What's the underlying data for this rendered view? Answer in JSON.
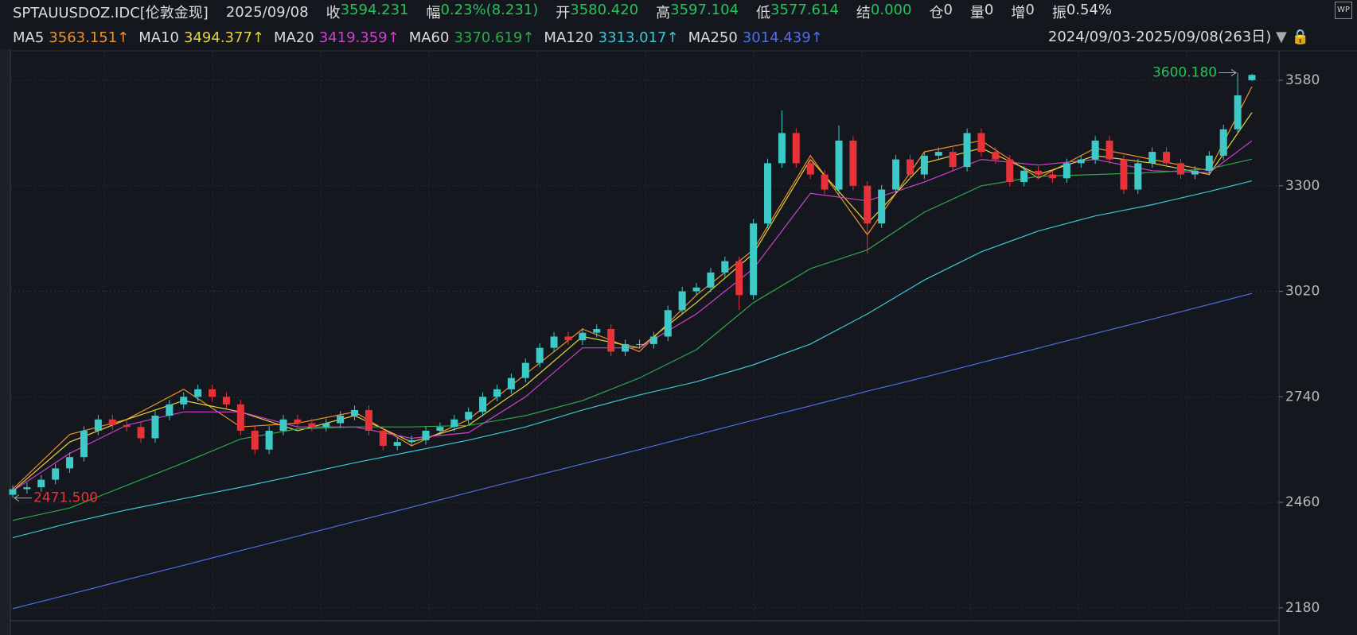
{
  "header": {
    "symbol": "SPTAUUSDOZ.IDC[伦敦金现]",
    "date": "2025/09/08",
    "fields": [
      {
        "label": "收",
        "value": "3594.231",
        "color": "#27c25c"
      },
      {
        "label": "幅",
        "value": "0.23%(8.231)",
        "color": "#27c25c"
      },
      {
        "label": "开",
        "value": "3580.420",
        "color": "#27c25c"
      },
      {
        "label": "高",
        "value": "3597.104",
        "color": "#27c25c"
      },
      {
        "label": "低",
        "value": "3577.614",
        "color": "#27c25c"
      },
      {
        "label": "结",
        "value": "0.000",
        "color": "#27c25c"
      },
      {
        "label": "仓",
        "value": "0",
        "color": "#dcdcdc"
      },
      {
        "label": "量",
        "value": "0",
        "color": "#dcdcdc"
      },
      {
        "label": "增",
        "value": "0",
        "color": "#dcdcdc"
      },
      {
        "label": "振",
        "value": "0.54%",
        "color": "#dcdcdc"
      }
    ]
  },
  "range_label": "2024/09/03-2025/09/08(263日)",
  "icon_text": "WP",
  "chart_data": {
    "type": "candlestick",
    "up_color": "#3ec9c9",
    "down_color": "#e8323a",
    "ylim": [
      2148,
      3656
    ],
    "yticks": [
      2180,
      2460,
      2740,
      3020,
      3300,
      3580
    ],
    "grid": true,
    "open": [
      2480,
      2495,
      2500,
      2520,
      2550,
      2580,
      2650,
      2680,
      2665,
      2660,
      2630,
      2690,
      2720,
      2740,
      2760,
      2740,
      2720,
      2650,
      2600,
      2650,
      2680,
      2670,
      2660,
      2670,
      2690,
      2705,
      2650,
      2610,
      2620,
      2625,
      2650,
      2660,
      2680,
      2700,
      2740,
      2760,
      2790,
      2830,
      2870,
      2900,
      2890,
      2910,
      2920,
      2860,
      2880,
      2880,
      2900,
      2970,
      3020,
      3030,
      3070,
      3100,
      3010,
      3200,
      3360,
      3440,
      3360,
      3330,
      3290,
      3420,
      3300,
      3200,
      3290,
      3370,
      3330,
      3380,
      3390,
      3350,
      3440,
      3390,
      3370,
      3310,
      3340,
      3330,
      3320,
      3360,
      3370,
      3420,
      3370,
      3290,
      3360,
      3390,
      3360,
      3330,
      3340,
      3380,
      3450,
      3580.42
    ],
    "high": [
      2505,
      2512,
      2532,
      2562,
      2592,
      2662,
      2692,
      2692,
      2677,
      2672,
      2702,
      2732,
      2752,
      2772,
      2772,
      2752,
      2732,
      2662,
      2662,
      2692,
      2692,
      2682,
      2682,
      2702,
      2717,
      2717,
      2662,
      2632,
      2637,
      2662,
      2672,
      2692,
      2712,
      2752,
      2772,
      2802,
      2842,
      2882,
      2912,
      2912,
      2922,
      2932,
      2932,
      2892,
      2892,
      2912,
      2982,
      3032,
      3042,
      3082,
      3112,
      3112,
      3212,
      3372,
      3500,
      3452,
      3372,
      3342,
      3460,
      3432,
      3312,
      3302,
      3382,
      3382,
      3392,
      3402,
      3402,
      3452,
      3452,
      3402,
      3382,
      3352,
      3352,
      3342,
      3372,
      3382,
      3432,
      3432,
      3382,
      3372,
      3402,
      3402,
      3372,
      3352,
      3392,
      3462,
      3600.18,
      3597.104
    ],
    "low": [
      2471.5,
      2483,
      2488,
      2508,
      2538,
      2568,
      2638,
      2653,
      2648,
      2618,
      2618,
      2678,
      2708,
      2728,
      2728,
      2708,
      2638,
      2588,
      2588,
      2638,
      2658,
      2648,
      2648,
      2658,
      2678,
      2638,
      2598,
      2598,
      2608,
      2613,
      2638,
      2648,
      2668,
      2688,
      2728,
      2748,
      2778,
      2818,
      2858,
      2878,
      2878,
      2898,
      2848,
      2848,
      2868,
      2868,
      2888,
      2958,
      3008,
      3018,
      3058,
      2970,
      2998,
      3188,
      3348,
      3348,
      3318,
      3278,
      3278,
      3288,
      3120,
      3188,
      3278,
      3318,
      3318,
      3368,
      3338,
      3338,
      3378,
      3358,
      3298,
      3298,
      3318,
      3308,
      3308,
      3348,
      3358,
      3358,
      3278,
      3278,
      3348,
      3348,
      3318,
      3318,
      3328,
      3368,
      3438,
      3577.614
    ],
    "close": [
      2495,
      2500,
      2520,
      2550,
      2580,
      2650,
      2680,
      2665,
      2660,
      2630,
      2690,
      2720,
      2740,
      2760,
      2740,
      2720,
      2650,
      2600,
      2650,
      2680,
      2670,
      2660,
      2670,
      2690,
      2705,
      2650,
      2610,
      2620,
      2625,
      2650,
      2660,
      2680,
      2700,
      2740,
      2760,
      2790,
      2830,
      2870,
      2900,
      2890,
      2910,
      2920,
      2860,
      2880,
      2880,
      2900,
      2970,
      3020,
      3030,
      3070,
      3100,
      3010,
      3200,
      3360,
      3440,
      3360,
      3330,
      3290,
      3420,
      3300,
      3200,
      3290,
      3370,
      3330,
      3380,
      3390,
      3350,
      3440,
      3390,
      3370,
      3310,
      3340,
      3330,
      3320,
      3360,
      3370,
      3420,
      3370,
      3290,
      3360,
      3390,
      3360,
      3330,
      3340,
      3380,
      3450,
      3540,
      3594.231
    ],
    "series": [
      {
        "name": "MA5",
        "last_label": "3563.151↑",
        "color": "#f0902a",
        "x": [
          0,
          4,
          8,
          12,
          16,
          20,
          24,
          28,
          32,
          36,
          40,
          44,
          48,
          52,
          56,
          60,
          64,
          68,
          72,
          76,
          80,
          84,
          87
        ],
        "values": [
          2495,
          2640,
          2680,
          2760,
          2660,
          2670,
          2700,
          2610,
          2680,
          2800,
          2920,
          2860,
          3010,
          3130,
          3380,
          3170,
          3390,
          3420,
          3320,
          3400,
          3370,
          3340,
          3563.151
        ]
      },
      {
        "name": "MA10",
        "last_label": "3494.377↑",
        "color": "#e6d23a",
        "x": [
          0,
          4,
          8,
          12,
          16,
          20,
          24,
          28,
          32,
          36,
          40,
          44,
          48,
          52,
          56,
          60,
          64,
          68,
          72,
          76,
          80,
          84,
          87
        ],
        "values": [
          2490,
          2620,
          2680,
          2730,
          2700,
          2650,
          2690,
          2620,
          2665,
          2770,
          2900,
          2870,
          2990,
          3120,
          3370,
          3200,
          3360,
          3400,
          3330,
          3380,
          3360,
          3330,
          3494.377
        ]
      },
      {
        "name": "MA20",
        "last_label": "3419.359↑",
        "color": "#d040d0",
        "x": [
          0,
          4,
          8,
          12,
          16,
          20,
          24,
          28,
          32,
          36,
          40,
          44,
          48,
          52,
          56,
          60,
          64,
          68,
          72,
          76,
          80,
          84,
          87
        ],
        "values": [
          2490,
          2590,
          2665,
          2700,
          2700,
          2660,
          2660,
          2630,
          2645,
          2740,
          2870,
          2870,
          2960,
          3080,
          3280,
          3260,
          3310,
          3370,
          3355,
          3370,
          3340,
          3335,
          3419.359
        ]
      },
      {
        "name": "MA60",
        "last_label": "3370.619↑",
        "color": "#2da84a",
        "x": [
          0,
          4,
          8,
          12,
          16,
          20,
          24,
          28,
          32,
          36,
          40,
          44,
          48,
          52,
          56,
          60,
          64,
          68,
          72,
          76,
          80,
          84,
          87
        ],
        "values": [
          2412,
          2445,
          2505,
          2565,
          2628,
          2655,
          2660,
          2660,
          2664,
          2690,
          2730,
          2790,
          2865,
          2990,
          3080,
          3130,
          3230,
          3300,
          3325,
          3330,
          3335,
          3345,
          3370.619
        ]
      },
      {
        "name": "MA120",
        "last_label": "3313.017↑",
        "color": "#3ec6d8",
        "x": [
          0,
          4,
          8,
          12,
          16,
          20,
          24,
          28,
          32,
          36,
          40,
          44,
          48,
          52,
          56,
          60,
          64,
          68,
          72,
          76,
          80,
          84,
          87
        ],
        "values": [
          2366,
          2405,
          2440,
          2470,
          2500,
          2532,
          2565,
          2595,
          2625,
          2660,
          2705,
          2745,
          2780,
          2825,
          2880,
          2960,
          3050,
          3125,
          3180,
          3220,
          3250,
          3285,
          3313.017
        ]
      },
      {
        "name": "MA250",
        "last_label": "3014.439↑",
        "color": "#4f6ee8",
        "x": [
          0,
          4,
          8,
          12,
          16,
          20,
          24,
          28,
          32,
          36,
          40,
          44,
          48,
          52,
          56,
          60,
          64,
          68,
          72,
          76,
          80,
          84,
          87
        ],
        "values": [
          2178,
          2216,
          2255,
          2293,
          2332,
          2370,
          2409,
          2447,
          2486,
          2524,
          2562,
          2600,
          2639,
          2678,
          2716,
          2755,
          2792,
          2831,
          2869,
          2908,
          2946,
          2985,
          3014.439
        ]
      }
    ],
    "annotations": [
      {
        "index": 86,
        "value": 3600.18,
        "label": "3600.180",
        "color": "#27c25c"
      },
      {
        "index": 0,
        "value": 2471.5,
        "label": "2471.500",
        "color": "#e8323a"
      }
    ]
  }
}
